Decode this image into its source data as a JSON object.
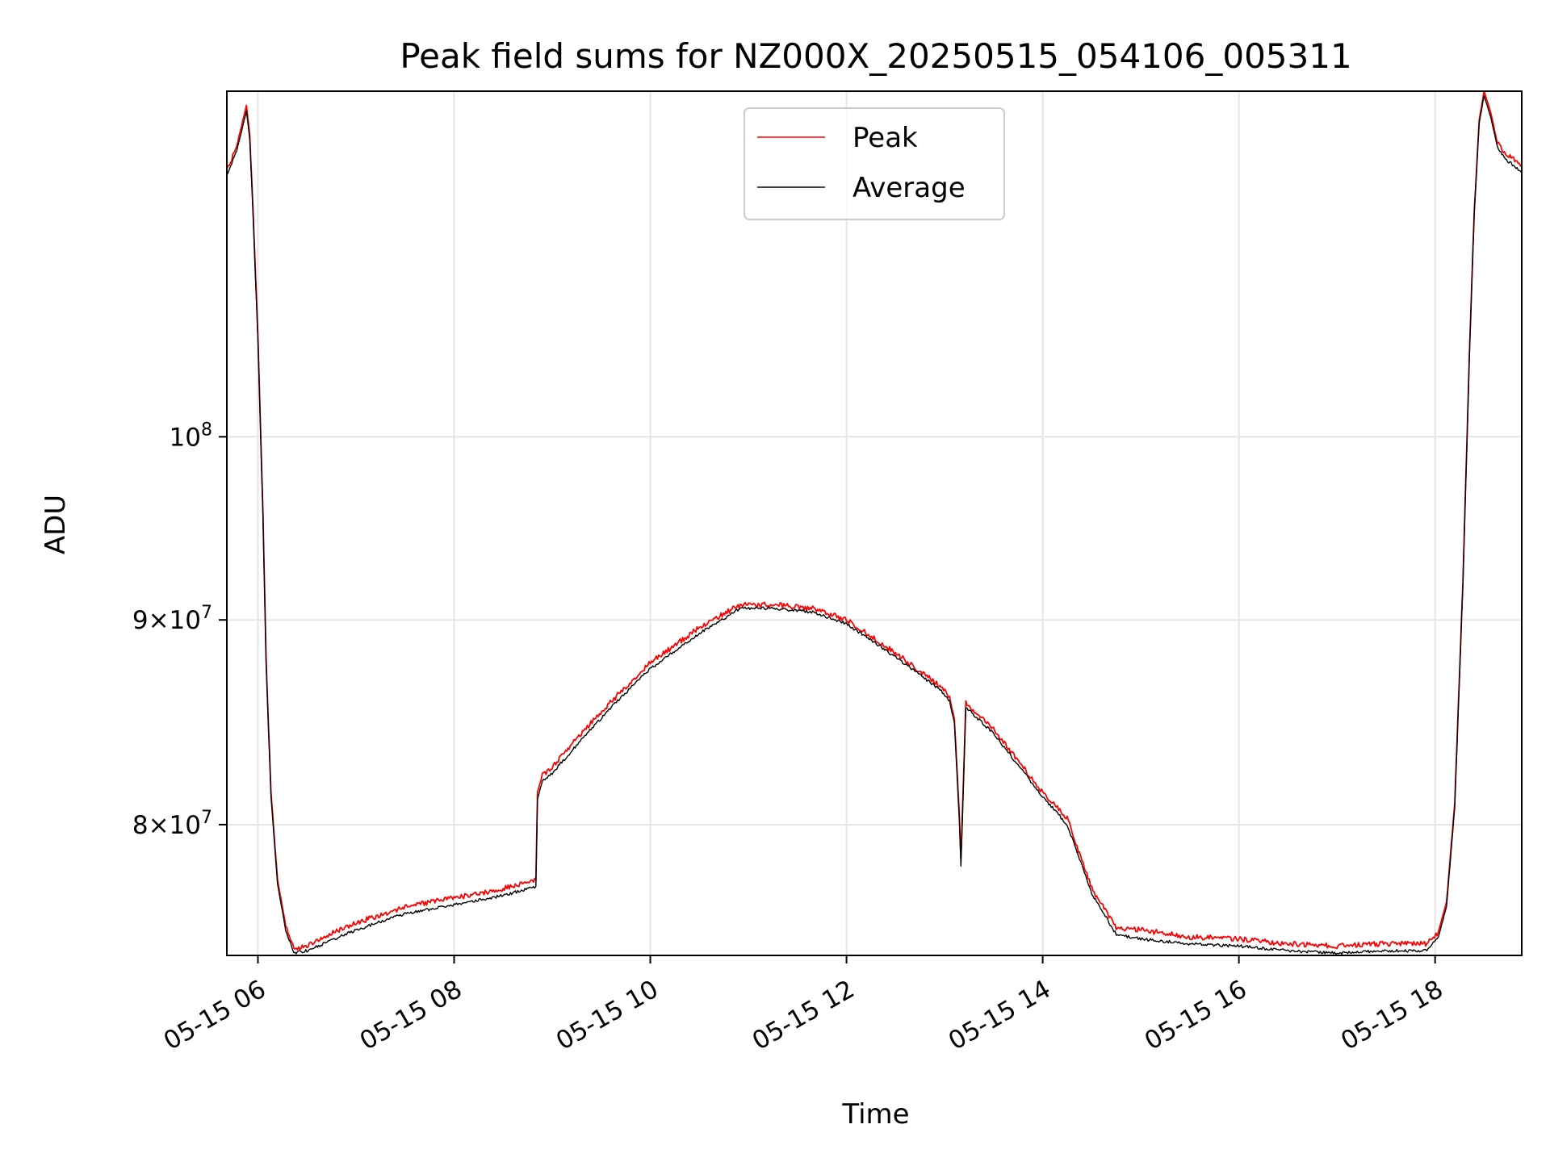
{
  "chart_data": {
    "type": "line",
    "title": "Peak field sums for NZ000X_20250515_054106_005311",
    "xlabel": "Time",
    "ylabel": "ADU",
    "yscale": "log",
    "grid": true,
    "legend": "upper center",
    "xlim": [
      "2025-05-15T05:41",
      "2025-05-15T18:53"
    ],
    "ylim": [
      74200000,
      122000000
    ],
    "x_ticks": [
      {
        "t": "2025-05-15T06:00",
        "label": "05-15 06"
      },
      {
        "t": "2025-05-15T08:00",
        "label": "05-15 08"
      },
      {
        "t": "2025-05-15T10:00",
        "label": "05-15 10"
      },
      {
        "t": "2025-05-15T12:00",
        "label": "05-15 12"
      },
      {
        "t": "2025-05-15T14:00",
        "label": "05-15 14"
      },
      {
        "t": "2025-05-15T16:00",
        "label": "05-15 16"
      },
      {
        "t": "2025-05-15T18:00",
        "label": "05-15 18"
      }
    ],
    "y_ticks": [
      {
        "value": 80000000,
        "mantissa": "8",
        "exp": "7"
      },
      {
        "value": 90000000,
        "mantissa": "9",
        "exp": "7"
      },
      {
        "value": 100000000,
        "mantissa": "",
        "exp": "8"
      }
    ],
    "series": [
      {
        "name": "Peak",
        "color": "#ff0000",
        "x": [
          "2025-05-15T05:41",
          "2025-05-15T05:47",
          "2025-05-15T05:53",
          "2025-05-15T05:55",
          "2025-05-15T05:57",
          "2025-05-15T06:00",
          "2025-05-15T06:03",
          "2025-05-15T06:05",
          "2025-05-15T06:08",
          "2025-05-15T06:12",
          "2025-05-15T06:17",
          "2025-05-15T06:22",
          "2025-05-15T06:30",
          "2025-05-15T06:40",
          "2025-05-15T07:00",
          "2025-05-15T07:30",
          "2025-05-15T08:00",
          "2025-05-15T08:30",
          "2025-05-15T08:50",
          "2025-05-15T08:51",
          "2025-05-15T08:54",
          "2025-05-15T09:00",
          "2025-05-15T09:20",
          "2025-05-15T09:40",
          "2025-05-15T10:00",
          "2025-05-15T10:30",
          "2025-05-15T10:55",
          "2025-05-15T11:15",
          "2025-05-15T11:40",
          "2025-05-15T12:00",
          "2025-05-15T12:30",
          "2025-05-15T12:58",
          "2025-05-15T13:03",
          "2025-05-15T13:06",
          "2025-05-15T13:09",
          "2025-05-15T13:10",
          "2025-05-15T13:13",
          "2025-05-15T13:30",
          "2025-05-15T14:00",
          "2025-05-15T14:15",
          "2025-05-15T14:30",
          "2025-05-15T14:45",
          "2025-05-15T15:00",
          "2025-05-15T15:30",
          "2025-05-15T16:00",
          "2025-05-15T16:30",
          "2025-05-15T17:00",
          "2025-05-15T17:30",
          "2025-05-15T17:55",
          "2025-05-15T18:02",
          "2025-05-15T18:07",
          "2025-05-15T18:12",
          "2025-05-15T18:17",
          "2025-05-15T18:21",
          "2025-05-15T18:24",
          "2025-05-15T18:27",
          "2025-05-15T18:30",
          "2025-05-15T18:34",
          "2025-05-15T18:38",
          "2025-05-15T18:43",
          "2025-05-15T18:48",
          "2025-05-15T18:53"
        ],
        "y": [
          116500000,
          118200000,
          121000000,
          119000000,
          114000000,
          106000000,
          96000000,
          88000000,
          81500000,
          77500000,
          75500000,
          74500000,
          74600000,
          75000000,
          75600000,
          76300000,
          76700000,
          77100000,
          77500000,
          81500000,
          82300000,
          82700000,
          84500000,
          86200000,
          87800000,
          89600000,
          90800000,
          90800000,
          90600000,
          90000000,
          88300000,
          86600000,
          86100000,
          85000000,
          80500000,
          78500000,
          85800000,
          84500000,
          81500000,
          80300000,
          77100000,
          75400000,
          75300000,
          75000000,
          74900000,
          74700000,
          74600000,
          74700000,
          74700000,
          75200000,
          76500000,
          81000000,
          92000000,
          105000000,
          114000000,
          120000000,
          122000000,
          120500000,
          118500000,
          117700000,
          117300000,
          116800000
        ]
      },
      {
        "name": "Average",
        "color": "#000000",
        "x": [
          "2025-05-15T05:41",
          "2025-05-15T05:47",
          "2025-05-15T05:53",
          "2025-05-15T05:55",
          "2025-05-15T05:57",
          "2025-05-15T06:00",
          "2025-05-15T06:03",
          "2025-05-15T06:05",
          "2025-05-15T06:08",
          "2025-05-15T06:12",
          "2025-05-15T06:17",
          "2025-05-15T06:22",
          "2025-05-15T06:30",
          "2025-05-15T06:40",
          "2025-05-15T07:00",
          "2025-05-15T07:30",
          "2025-05-15T08:00",
          "2025-05-15T08:30",
          "2025-05-15T08:50",
          "2025-05-15T08:51",
          "2025-05-15T08:54",
          "2025-05-15T09:00",
          "2025-05-15T09:20",
          "2025-05-15T09:40",
          "2025-05-15T10:00",
          "2025-05-15T10:30",
          "2025-05-15T10:55",
          "2025-05-15T11:15",
          "2025-05-15T11:40",
          "2025-05-15T12:00",
          "2025-05-15T12:30",
          "2025-05-15T12:58",
          "2025-05-15T13:03",
          "2025-05-15T13:06",
          "2025-05-15T13:09",
          "2025-05-15T13:10",
          "2025-05-15T13:13",
          "2025-05-15T13:30",
          "2025-05-15T14:00",
          "2025-05-15T14:15",
          "2025-05-15T14:30",
          "2025-05-15T14:45",
          "2025-05-15T15:00",
          "2025-05-15T15:30",
          "2025-05-15T16:00",
          "2025-05-15T16:30",
          "2025-05-15T17:00",
          "2025-05-15T17:30",
          "2025-05-15T17:55",
          "2025-05-15T18:02",
          "2025-05-15T18:07",
          "2025-05-15T18:12",
          "2025-05-15T18:17",
          "2025-05-15T18:21",
          "2025-05-15T18:24",
          "2025-05-15T18:27",
          "2025-05-15T18:30",
          "2025-05-15T18:34",
          "2025-05-15T18:38",
          "2025-05-15T18:43",
          "2025-05-15T18:48",
          "2025-05-15T18:53"
        ],
        "y": [
          116200000,
          117900000,
          120600000,
          118700000,
          113700000,
          105700000,
          95800000,
          87800000,
          81300000,
          77300000,
          75300000,
          74300000,
          74400000,
          74700000,
          75300000,
          76000000,
          76400000,
          76800000,
          77200000,
          81200000,
          82000000,
          82400000,
          84200000,
          85900000,
          87500000,
          89300000,
          90600000,
          90600000,
          90400000,
          89800000,
          88100000,
          86400000,
          85900000,
          84800000,
          80200000,
          78100000,
          85600000,
          84300000,
          81300000,
          80000000,
          76900000,
          75100000,
          74900000,
          74700000,
          74600000,
          74400000,
          74300000,
          74400000,
          74400000,
          75000000,
          76300000,
          80800000,
          91800000,
          104800000,
          113800000,
          119800000,
          121700000,
          120200000,
          118200000,
          117300000,
          116900000,
          116400000
        ]
      }
    ]
  }
}
